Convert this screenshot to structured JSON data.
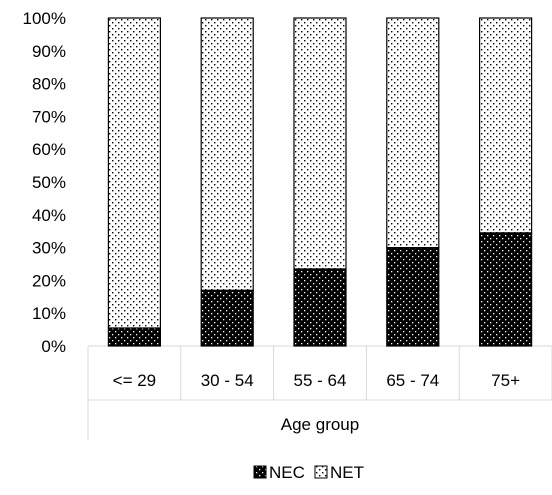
{
  "chart_data": {
    "type": "bar",
    "stacked": true,
    "percent_stacked": true,
    "categories": [
      "<= 29",
      "30 - 54",
      "55 - 64",
      "65 - 74",
      "75+"
    ],
    "series": [
      {
        "name": "NEC",
        "values": [
          5.5,
          17,
          23.5,
          30,
          34.5
        ],
        "pattern": "dense-dots-black"
      },
      {
        "name": "NET",
        "values": [
          94.5,
          83,
          76.5,
          70,
          65.5
        ],
        "pattern": "sparse-dots-white"
      }
    ],
    "ylim": [
      0,
      100
    ],
    "yticks": [
      0,
      10,
      20,
      30,
      40,
      50,
      60,
      70,
      80,
      90,
      100
    ],
    "ytick_format": "{v}%",
    "xlabel": "Age group",
    "ylabel": "",
    "title": "",
    "legend_position": "bottom",
    "grid": false,
    "colors": {
      "outline": "#000000",
      "nec_fill": "#000000",
      "net_fill": "#ffffff",
      "axis": "#d9d9d9"
    }
  }
}
